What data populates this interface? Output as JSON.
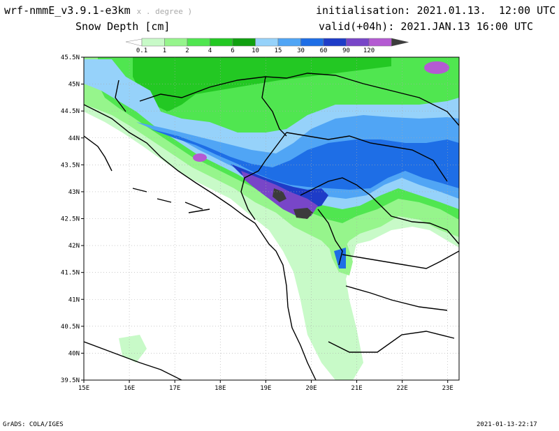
{
  "header": {
    "model": "wrf-nmmE_v3.9.1-e3km",
    "model_suffix": "x . degree )",
    "variable": "Snow Depth [cm]",
    "initialisation": "initialisation: 2021.01.13.  12:00 UTC",
    "valid": "valid(+04h): 2021.JAN.13 16:00 UTC"
  },
  "footer": {
    "credit": "GrADS: COLA/IGES",
    "timestamp": "2021-01-13-22:17"
  },
  "legend": {
    "levels": [
      "0.1",
      "1",
      "2",
      "4",
      "6",
      "10",
      "15",
      "30",
      "60",
      "90",
      "120"
    ],
    "colors": [
      "#c8fac8",
      "#96f58c",
      "#50e650",
      "#23c823",
      "#10a010",
      "#96d2fa",
      "#50a5f5",
      "#1e6ee6",
      "#1e3cc8",
      "#7846c8",
      "#b45ad2",
      "#3c3c3c"
    ]
  },
  "axes": {
    "lat_labels": [
      "45.5N",
      "45N",
      "44.5N",
      "44N",
      "43.5N",
      "43N",
      "42.5N",
      "42N",
      "41.5N",
      "41N",
      "40.5N",
      "40N",
      "39.5N"
    ],
    "lon_labels": [
      "15E",
      "16E",
      "17E",
      "18E",
      "19E",
      "20E",
      "21E",
      "22E",
      "23E"
    ]
  }
}
